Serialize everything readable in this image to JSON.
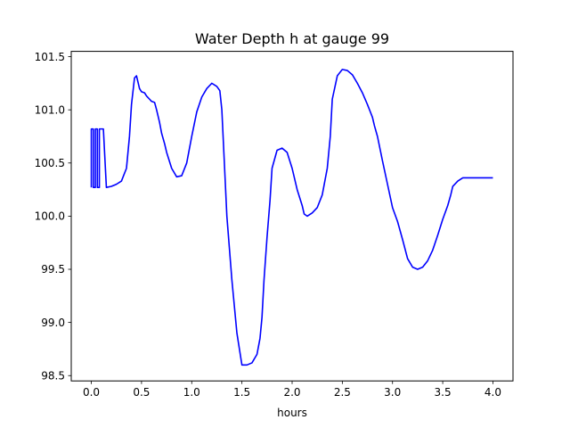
{
  "chart_data": {
    "type": "line",
    "title": "Water Depth h at gauge 99",
    "xlabel": "hours",
    "ylabel": "",
    "xlim": [
      -0.2,
      4.2
    ],
    "ylim": [
      98.45,
      101.55
    ],
    "xticks": [
      0.0,
      0.5,
      1.0,
      1.5,
      2.0,
      2.5,
      3.0,
      3.5,
      4.0
    ],
    "xtick_labels": [
      "0.0",
      "0.5",
      "1.0",
      "1.5",
      "2.0",
      "2.5",
      "3.0",
      "3.5",
      "4.0"
    ],
    "yticks": [
      98.5,
      99.0,
      99.5,
      100.0,
      100.5,
      101.0,
      101.5
    ],
    "ytick_labels": [
      "98.5",
      "99.0",
      "99.5",
      "100.0",
      "100.5",
      "101.0",
      "101.5"
    ],
    "grid": false,
    "series": [
      {
        "color": "#0000ff",
        "x": [
          0.0,
          0.0,
          0.02,
          0.02,
          0.04,
          0.04,
          0.06,
          0.06,
          0.08,
          0.08,
          0.1,
          0.12,
          0.15,
          0.2,
          0.25,
          0.3,
          0.35,
          0.38,
          0.4,
          0.43,
          0.45,
          0.48,
          0.5,
          0.53,
          0.55,
          0.58,
          0.6,
          0.63,
          0.65,
          0.68,
          0.7,
          0.73,
          0.75,
          0.8,
          0.85,
          0.9,
          0.95,
          1.0,
          1.05,
          1.1,
          1.15,
          1.2,
          1.25,
          1.28,
          1.3,
          1.32,
          1.35,
          1.4,
          1.45,
          1.5,
          1.55,
          1.6,
          1.65,
          1.68,
          1.7,
          1.72,
          1.75,
          1.78,
          1.8,
          1.85,
          1.9,
          1.95,
          2.0,
          2.05,
          2.1,
          2.12,
          2.15,
          2.2,
          2.25,
          2.3,
          2.35,
          2.38,
          2.4,
          2.45,
          2.5,
          2.55,
          2.6,
          2.65,
          2.7,
          2.75,
          2.8,
          2.82,
          2.85,
          2.9,
          2.95,
          3.0,
          3.05,
          3.1,
          3.15,
          3.2,
          3.25,
          3.3,
          3.35,
          3.4,
          3.45,
          3.5,
          3.55,
          3.58,
          3.6,
          3.65,
          3.7,
          3.75,
          3.8,
          3.85,
          3.9,
          3.95,
          4.0
        ],
        "y": [
          100.27,
          100.82,
          100.82,
          100.27,
          100.27,
          100.82,
          100.82,
          100.27,
          100.27,
          100.82,
          100.82,
          100.82,
          100.27,
          100.28,
          100.3,
          100.33,
          100.45,
          100.75,
          101.05,
          101.3,
          101.32,
          101.2,
          101.17,
          101.16,
          101.13,
          101.1,
          101.08,
          101.07,
          101.0,
          100.88,
          100.78,
          100.68,
          100.6,
          100.45,
          100.37,
          100.38,
          100.5,
          100.75,
          100.98,
          101.12,
          101.2,
          101.25,
          101.22,
          101.18,
          101.0,
          100.6,
          100.0,
          99.4,
          98.9,
          98.6,
          98.6,
          98.62,
          98.7,
          98.85,
          99.05,
          99.4,
          99.8,
          100.15,
          100.45,
          100.62,
          100.64,
          100.6,
          100.45,
          100.25,
          100.1,
          100.02,
          100.0,
          100.03,
          100.08,
          100.2,
          100.45,
          100.75,
          101.1,
          101.32,
          101.38,
          101.37,
          101.33,
          101.25,
          101.16,
          101.05,
          100.93,
          100.85,
          100.75,
          100.52,
          100.3,
          100.08,
          99.95,
          99.78,
          99.6,
          99.52,
          99.5,
          99.52,
          99.58,
          99.68,
          99.82,
          99.97,
          100.1,
          100.2,
          100.28,
          100.33,
          100.36,
          100.36,
          100.36,
          100.36,
          100.36,
          100.36,
          100.36
        ]
      }
    ]
  }
}
